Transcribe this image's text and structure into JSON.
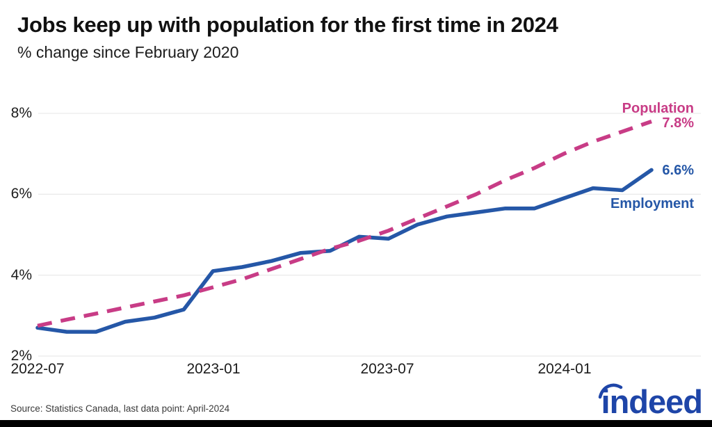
{
  "header": {
    "title": "Jobs keep up with population for the first time in 2024",
    "subtitle": "% change since February 2020"
  },
  "chart_data": {
    "type": "line",
    "title": "Jobs keep up with population for the first time in 2024",
    "subtitle": "% change since February 2020",
    "x": [
      "2022-07",
      "2022-08",
      "2022-09",
      "2022-10",
      "2022-11",
      "2022-12",
      "2023-01",
      "2023-02",
      "2023-03",
      "2023-04",
      "2023-05",
      "2023-06",
      "2023-07",
      "2023-08",
      "2023-09",
      "2023-10",
      "2023-11",
      "2023-12",
      "2024-01",
      "2024-02",
      "2024-03",
      "2024-04"
    ],
    "series": [
      {
        "name": "Population",
        "color": "#c83c86",
        "dashed": true,
        "end_label": "7.8%",
        "values": [
          2.75,
          2.9,
          3.05,
          3.2,
          3.35,
          3.5,
          3.7,
          3.9,
          4.15,
          4.4,
          4.65,
          4.85,
          5.1,
          5.4,
          5.7,
          6.0,
          6.35,
          6.65,
          7.0,
          7.3,
          7.55,
          7.8
        ]
      },
      {
        "name": "Employment",
        "color": "#2557a7",
        "dashed": false,
        "end_label": "6.6%",
        "values": [
          2.7,
          2.6,
          2.6,
          2.85,
          2.95,
          3.15,
          4.1,
          4.2,
          4.35,
          4.55,
          4.6,
          4.95,
          4.9,
          5.25,
          5.45,
          5.55,
          5.65,
          5.65,
          5.9,
          6.15,
          6.1,
          6.6
        ]
      }
    ],
    "ylim": [
      2,
      8
    ],
    "yticks": [
      8,
      6,
      4,
      2
    ],
    "ytick_labels": [
      "8%",
      "6%",
      "4%",
      "2%"
    ],
    "xtick_labels": [
      "2022-07",
      "2023-01",
      "2023-07",
      "2024-01"
    ],
    "grid": "horizontal",
    "grid_color": "#e4e4e4",
    "legend_position": "end-of-line"
  },
  "footer": {
    "source": "Source: Statistics Canada, last data point: April-2024"
  },
  "logo": {
    "text": "indeed",
    "color": "#1e45a8"
  }
}
